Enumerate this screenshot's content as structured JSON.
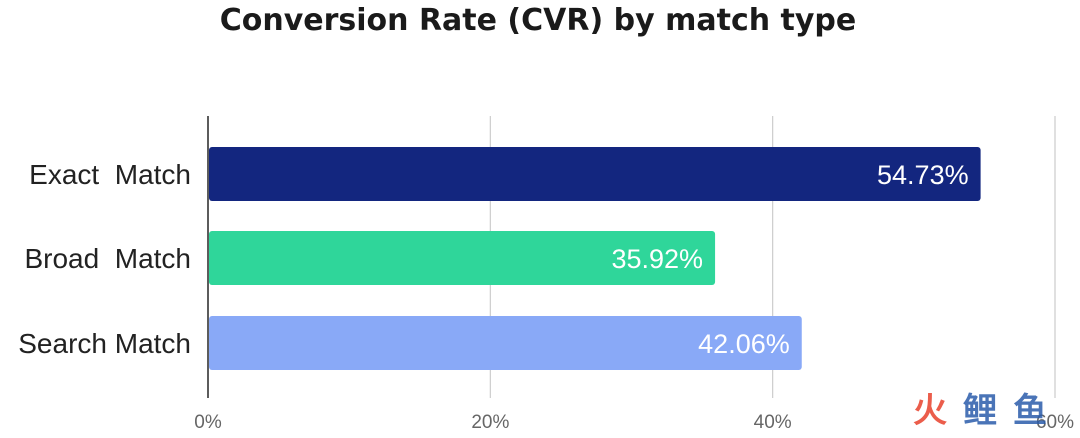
{
  "chart_data": {
    "type": "bar",
    "orientation": "horizontal",
    "title": "Conversion Rate (CVR) by match type",
    "categories": [
      "Exact  Match",
      "Broad  Match",
      "Search Match"
    ],
    "values": [
      54.73,
      35.92,
      42.06
    ],
    "data_labels": [
      "54.73%",
      "35.92%",
      "42.06%"
    ],
    "bar_colors": [
      "#13267f",
      "#2fd69a",
      "#89a9f7"
    ],
    "xlim": [
      0,
      60
    ],
    "x_ticks": [
      0,
      20,
      40,
      60
    ],
    "x_tick_labels": [
      "0%",
      "20%",
      "40%",
      "60%"
    ],
    "xlabel": "",
    "ylabel": "",
    "grid": "vertical",
    "legend": "none"
  },
  "watermark": {
    "text": "火鲤鱼",
    "colors": [
      "#e8412c",
      "#2a5caa"
    ]
  }
}
